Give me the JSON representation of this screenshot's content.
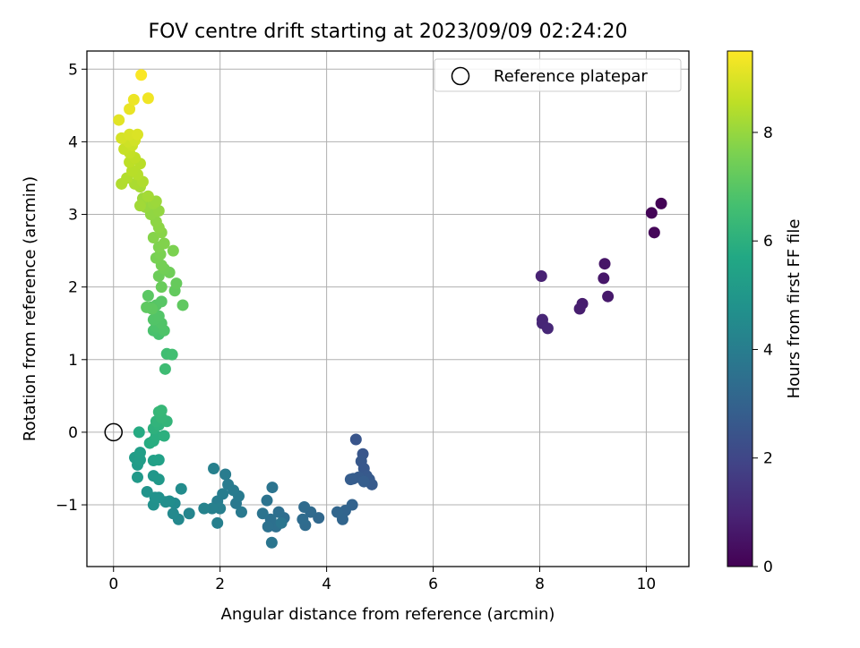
{
  "chart_data": {
    "type": "scatter",
    "title": "FOV centre drift starting at 2023/09/09 02:24:20",
    "xlabel": "Angular distance from reference (arcmin)",
    "ylabel": "Rotation from reference (arcmin)",
    "xlim": [
      -0.5,
      10.8
    ],
    "ylim": [
      -1.85,
      5.25
    ],
    "xticks": [
      0,
      2,
      4,
      6,
      8,
      10
    ],
    "yticks": [
      -1,
      0,
      1,
      2,
      3,
      4,
      5
    ],
    "grid": true,
    "legend": {
      "placement": "top-right",
      "entries": [
        {
          "label": "Reference platepar",
          "marker": "open-circle"
        }
      ]
    },
    "reference_point": {
      "x": 0,
      "y": 0
    },
    "colorbar": {
      "label": "Hours from first FF file",
      "colormap": "viridis",
      "range": [
        0,
        9.5
      ],
      "ticks": [
        0,
        2,
        4,
        6,
        8
      ]
    },
    "points": [
      {
        "x": 10.28,
        "y": 3.15,
        "t": 0.05
      },
      {
        "x": 10.1,
        "y": 3.02,
        "t": 0.1
      },
      {
        "x": 10.15,
        "y": 2.75,
        "t": 0.15
      },
      {
        "x": 9.22,
        "y": 2.32,
        "t": 0.55
      },
      {
        "x": 9.2,
        "y": 2.12,
        "t": 0.6
      },
      {
        "x": 9.28,
        "y": 1.87,
        "t": 0.65
      },
      {
        "x": 8.03,
        "y": 2.15,
        "t": 0.9
      },
      {
        "x": 8.8,
        "y": 1.77,
        "t": 0.75
      },
      {
        "x": 8.75,
        "y": 1.7,
        "t": 0.78
      },
      {
        "x": 8.05,
        "y": 1.55,
        "t": 1.0
      },
      {
        "x": 8.05,
        "y": 1.5,
        "t": 1.02
      },
      {
        "x": 8.15,
        "y": 1.43,
        "t": 1.05
      },
      {
        "x": 4.55,
        "y": -0.1,
        "t": 2.5
      },
      {
        "x": 4.68,
        "y": -0.3,
        "t": 2.55
      },
      {
        "x": 4.65,
        "y": -0.4,
        "t": 2.6
      },
      {
        "x": 4.7,
        "y": -0.5,
        "t": 2.62
      },
      {
        "x": 4.75,
        "y": -0.6,
        "t": 2.65
      },
      {
        "x": 4.8,
        "y": -0.65,
        "t": 2.68
      },
      {
        "x": 4.85,
        "y": -0.72,
        "t": 2.7
      },
      {
        "x": 4.6,
        "y": -0.62,
        "t": 2.72
      },
      {
        "x": 4.5,
        "y": -0.64,
        "t": 2.75
      },
      {
        "x": 4.45,
        "y": -0.65,
        "t": 2.78
      },
      {
        "x": 4.7,
        "y": -0.68,
        "t": 2.8
      },
      {
        "x": 4.48,
        "y": -1.0,
        "t": 3.0
      },
      {
        "x": 4.35,
        "y": -1.08,
        "t": 3.05
      },
      {
        "x": 4.3,
        "y": -1.2,
        "t": 3.08
      },
      {
        "x": 4.2,
        "y": -1.1,
        "t": 3.1
      },
      {
        "x": 3.85,
        "y": -1.18,
        "t": 3.2
      },
      {
        "x": 3.7,
        "y": -1.1,
        "t": 3.25
      },
      {
        "x": 3.58,
        "y": -1.03,
        "t": 3.3
      },
      {
        "x": 3.6,
        "y": -1.28,
        "t": 3.32
      },
      {
        "x": 3.55,
        "y": -1.2,
        "t": 3.35
      },
      {
        "x": 3.2,
        "y": -1.18,
        "t": 3.4
      },
      {
        "x": 3.1,
        "y": -1.1,
        "t": 3.45
      },
      {
        "x": 3.05,
        "y": -1.3,
        "t": 3.48
      },
      {
        "x": 2.95,
        "y": -1.2,
        "t": 3.5
      },
      {
        "x": 2.9,
        "y": -1.3,
        "t": 3.55
      },
      {
        "x": 2.8,
        "y": -1.12,
        "t": 3.6
      },
      {
        "x": 2.88,
        "y": -0.94,
        "t": 3.62
      },
      {
        "x": 2.98,
        "y": -0.76,
        "t": 3.65
      },
      {
        "x": 3.15,
        "y": -1.25,
        "t": 3.68
      },
      {
        "x": 2.97,
        "y": -1.52,
        "t": 3.7
      },
      {
        "x": 2.3,
        "y": -0.98,
        "t": 3.8
      },
      {
        "x": 2.4,
        "y": -1.1,
        "t": 3.85
      },
      {
        "x": 2.35,
        "y": -0.88,
        "t": 3.88
      },
      {
        "x": 2.25,
        "y": -0.8,
        "t": 3.9
      },
      {
        "x": 2.15,
        "y": -0.72,
        "t": 3.92
      },
      {
        "x": 2.1,
        "y": -0.58,
        "t": 3.95
      },
      {
        "x": 2.05,
        "y": -0.85,
        "t": 3.98
      },
      {
        "x": 1.95,
        "y": -0.95,
        "t": 4.0
      },
      {
        "x": 2.0,
        "y": -1.05,
        "t": 4.05
      },
      {
        "x": 1.95,
        "y": -1.25,
        "t": 4.08
      },
      {
        "x": 1.85,
        "y": -1.05,
        "t": 4.1
      },
      {
        "x": 1.88,
        "y": -0.5,
        "t": 4.12
      },
      {
        "x": 1.7,
        "y": -1.05,
        "t": 4.2
      },
      {
        "x": 1.42,
        "y": -1.12,
        "t": 4.3
      },
      {
        "x": 1.22,
        "y": -1.2,
        "t": 4.4
      },
      {
        "x": 1.12,
        "y": -1.12,
        "t": 4.45
      },
      {
        "x": 1.15,
        "y": -0.98,
        "t": 4.5
      },
      {
        "x": 1.27,
        "y": -0.78,
        "t": 4.55
      },
      {
        "x": 1.05,
        "y": -0.95,
        "t": 4.6
      },
      {
        "x": 0.98,
        "y": -0.96,
        "t": 4.65
      },
      {
        "x": 0.85,
        "y": -0.9,
        "t": 4.7
      },
      {
        "x": 0.75,
        "y": -1.0,
        "t": 4.75
      },
      {
        "x": 0.78,
        "y": -0.9,
        "t": 4.8
      },
      {
        "x": 0.63,
        "y": -0.82,
        "t": 4.85
      },
      {
        "x": 0.75,
        "y": -0.6,
        "t": 5.0
      },
      {
        "x": 0.85,
        "y": -0.65,
        "t": 5.05
      },
      {
        "x": 0.45,
        "y": -0.62,
        "t": 5.1
      },
      {
        "x": 0.45,
        "y": -0.45,
        "t": 5.15
      },
      {
        "x": 0.4,
        "y": -0.35,
        "t": 5.2
      },
      {
        "x": 0.5,
        "y": -0.38,
        "t": 5.25
      },
      {
        "x": 0.5,
        "y": -0.28,
        "t": 5.3
      },
      {
        "x": 0.75,
        "y": -0.39,
        "t": 5.35
      },
      {
        "x": 0.85,
        "y": -0.38,
        "t": 5.4
      },
      {
        "x": 0.48,
        "y": 0.0,
        "t": 5.8
      },
      {
        "x": 0.68,
        "y": -0.15,
        "t": 5.85
      },
      {
        "x": 0.75,
        "y": -0.12,
        "t": 5.9
      },
      {
        "x": 0.8,
        "y": -0.05,
        "t": 5.95
      },
      {
        "x": 0.95,
        "y": -0.05,
        "t": 6.0
      },
      {
        "x": 0.75,
        "y": 0.05,
        "t": 6.05
      },
      {
        "x": 0.85,
        "y": 0.1,
        "t": 6.1
      },
      {
        "x": 0.8,
        "y": 0.15,
        "t": 6.15
      },
      {
        "x": 1.0,
        "y": 0.15,
        "t": 6.2
      },
      {
        "x": 0.9,
        "y": 0.2,
        "t": 6.25
      },
      {
        "x": 0.85,
        "y": 0.28,
        "t": 6.28
      },
      {
        "x": 0.9,
        "y": 0.3,
        "t": 6.3
      },
      {
        "x": 0.97,
        "y": 0.87,
        "t": 6.5
      },
      {
        "x": 1.0,
        "y": 1.08,
        "t": 6.55
      },
      {
        "x": 1.1,
        "y": 1.07,
        "t": 6.6
      },
      {
        "x": 0.85,
        "y": 1.35,
        "t": 6.7
      },
      {
        "x": 0.75,
        "y": 1.4,
        "t": 6.75
      },
      {
        "x": 0.8,
        "y": 1.45,
        "t": 6.8
      },
      {
        "x": 0.95,
        "y": 1.4,
        "t": 6.85
      },
      {
        "x": 0.9,
        "y": 1.5,
        "t": 6.88
      },
      {
        "x": 0.75,
        "y": 1.55,
        "t": 6.9
      },
      {
        "x": 0.85,
        "y": 1.6,
        "t": 6.92
      },
      {
        "x": 0.7,
        "y": 1.72,
        "t": 6.95
      },
      {
        "x": 0.8,
        "y": 1.75,
        "t": 6.98
      },
      {
        "x": 0.9,
        "y": 1.8,
        "t": 7.0
      },
      {
        "x": 0.65,
        "y": 1.88,
        "t": 7.05
      },
      {
        "x": 0.72,
        "y": 1.7,
        "t": 7.1
      },
      {
        "x": 0.62,
        "y": 1.72,
        "t": 7.12
      },
      {
        "x": 1.3,
        "y": 1.75,
        "t": 7.15
      },
      {
        "x": 1.15,
        "y": 1.95,
        "t": 7.2
      },
      {
        "x": 1.18,
        "y": 2.05,
        "t": 7.25
      },
      {
        "x": 0.9,
        "y": 2.0,
        "t": 7.3
      },
      {
        "x": 0.85,
        "y": 2.15,
        "t": 7.35
      },
      {
        "x": 1.05,
        "y": 2.2,
        "t": 7.4
      },
      {
        "x": 0.95,
        "y": 2.25,
        "t": 7.45
      },
      {
        "x": 0.9,
        "y": 2.3,
        "t": 7.5
      },
      {
        "x": 0.8,
        "y": 2.4,
        "t": 7.55
      },
      {
        "x": 0.88,
        "y": 2.45,
        "t": 7.6
      },
      {
        "x": 1.12,
        "y": 2.5,
        "t": 7.62
      },
      {
        "x": 0.85,
        "y": 2.55,
        "t": 7.65
      },
      {
        "x": 0.95,
        "y": 2.6,
        "t": 7.7
      },
      {
        "x": 0.75,
        "y": 2.68,
        "t": 7.75
      },
      {
        "x": 0.9,
        "y": 2.75,
        "t": 7.8
      },
      {
        "x": 0.85,
        "y": 2.82,
        "t": 7.85
      },
      {
        "x": 0.8,
        "y": 2.9,
        "t": 7.88
      },
      {
        "x": 0.7,
        "y": 3.0,
        "t": 7.92
      },
      {
        "x": 0.85,
        "y": 3.05,
        "t": 7.95
      },
      {
        "x": 0.6,
        "y": 3.1,
        "t": 8.0
      },
      {
        "x": 0.75,
        "y": 3.15,
        "t": 8.05
      },
      {
        "x": 0.8,
        "y": 3.18,
        "t": 8.08
      },
      {
        "x": 0.55,
        "y": 3.22,
        "t": 8.1
      },
      {
        "x": 0.5,
        "y": 3.12,
        "t": 8.15
      },
      {
        "x": 0.65,
        "y": 3.25,
        "t": 8.2
      },
      {
        "x": 0.5,
        "y": 3.38,
        "t": 8.25
      },
      {
        "x": 0.4,
        "y": 3.42,
        "t": 8.3
      },
      {
        "x": 0.55,
        "y": 3.45,
        "t": 8.35
      },
      {
        "x": 0.15,
        "y": 3.42,
        "t": 8.38
      },
      {
        "x": 0.25,
        "y": 3.5,
        "t": 8.4
      },
      {
        "x": 0.45,
        "y": 3.55,
        "t": 8.45
      },
      {
        "x": 0.35,
        "y": 3.6,
        "t": 8.48
      },
      {
        "x": 0.5,
        "y": 3.7,
        "t": 8.5
      },
      {
        "x": 0.3,
        "y": 3.72,
        "t": 8.55
      },
      {
        "x": 0.4,
        "y": 3.78,
        "t": 8.6
      },
      {
        "x": 0.3,
        "y": 3.85,
        "t": 8.65
      },
      {
        "x": 0.2,
        "y": 3.9,
        "t": 8.7
      },
      {
        "x": 0.35,
        "y": 3.95,
        "t": 8.75
      },
      {
        "x": 0.28,
        "y": 4.0,
        "t": 8.8
      },
      {
        "x": 0.4,
        "y": 4.02,
        "t": 8.85
      },
      {
        "x": 0.15,
        "y": 4.05,
        "t": 8.9
      },
      {
        "x": 0.3,
        "y": 4.1,
        "t": 8.95
      },
      {
        "x": 0.45,
        "y": 4.1,
        "t": 9.0
      },
      {
        "x": 0.1,
        "y": 4.3,
        "t": 9.1
      },
      {
        "x": 0.3,
        "y": 4.45,
        "t": 9.2
      },
      {
        "x": 0.38,
        "y": 4.58,
        "t": 9.25
      },
      {
        "x": 0.65,
        "y": 4.6,
        "t": 9.3
      },
      {
        "x": 0.52,
        "y": 4.92,
        "t": 9.45
      }
    ]
  }
}
